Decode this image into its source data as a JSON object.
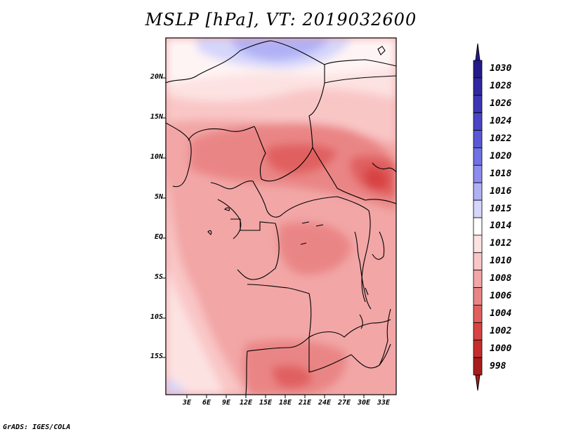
{
  "title": "MSLP [hPa], VT: 2019032600",
  "credit": "GrADS: IGES/COLA",
  "y_ticks": [
    "20N",
    "15N",
    "10N",
    "5N",
    "EQ",
    "5S",
    "10S",
    "15S"
  ],
  "x_ticks": [
    "3E",
    "6E",
    "9E",
    "12E",
    "15E",
    "18E",
    "21E",
    "24E",
    "27E",
    "30E",
    "33E"
  ],
  "colorbar": {
    "labels": [
      "1030",
      "1028",
      "1026",
      "1024",
      "1022",
      "1020",
      "1018",
      "1016",
      "1015",
      "1014",
      "1012",
      "1010",
      "1008",
      "1006",
      "1004",
      "1002",
      "1000",
      "998"
    ],
    "colors": [
      "#241a8a",
      "#2f28a0",
      "#3c35b4",
      "#4a45c6",
      "#5a58d6",
      "#7071e2",
      "#8c8ded",
      "#b0b1f5",
      "#d5d6fb",
      "#ffffff",
      "#fde2e2",
      "#f9c6c6",
      "#f2a6a6",
      "#ea8585",
      "#e06060",
      "#d84343",
      "#c62e2e",
      "#a81e1e"
    ]
  }
}
